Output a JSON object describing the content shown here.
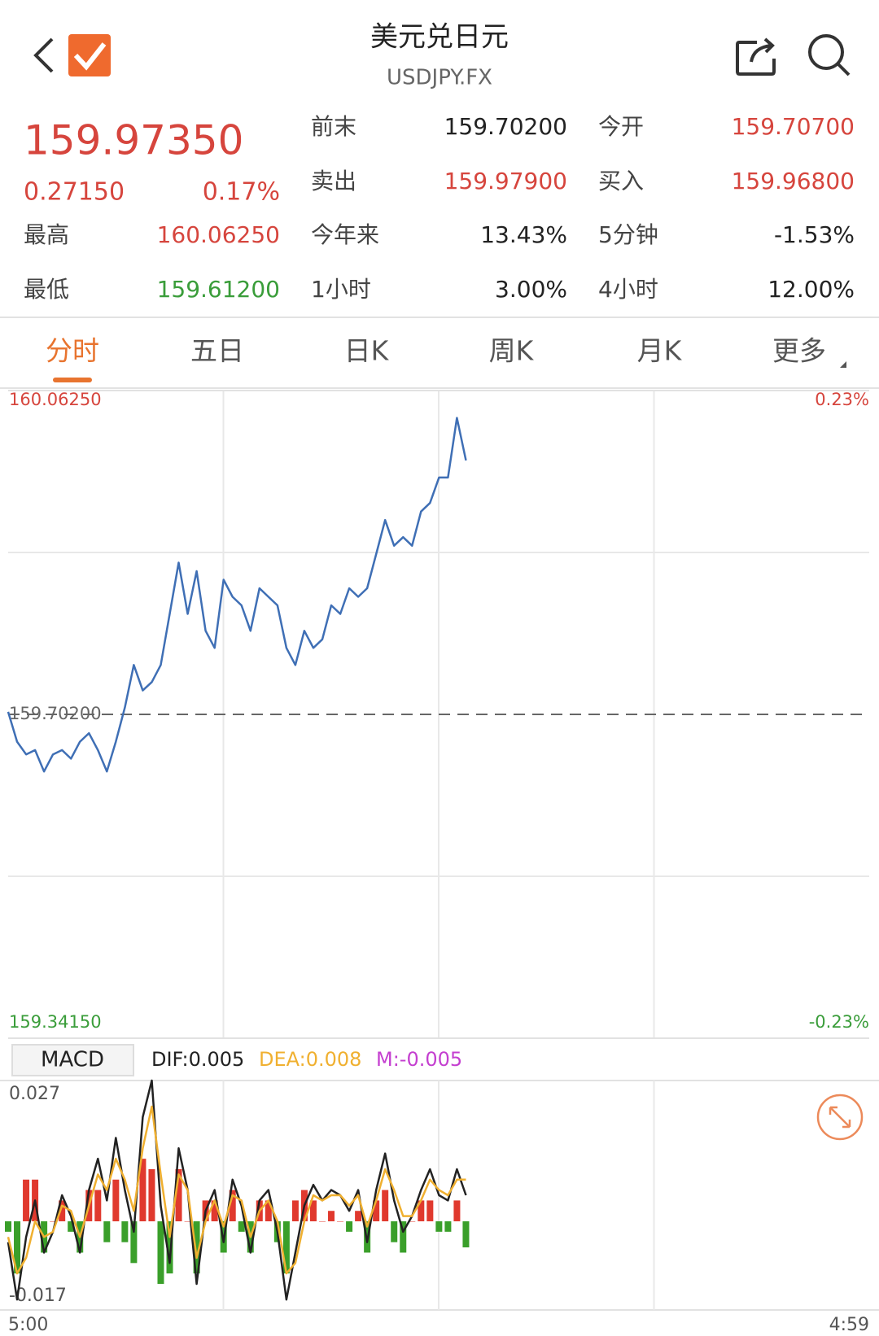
{
  "header": {
    "title": "美元兑日元",
    "code": "USDJPY.FX"
  },
  "quote": {
    "price": "159.97350",
    "change": "0.27150",
    "change_pct": "0.17%",
    "high_label": "最高",
    "high": "160.06250",
    "low_label": "最低",
    "low": "159.61200"
  },
  "stats": [
    [
      {
        "label": "前末",
        "value": "159.70200"
      },
      {
        "label": "今开",
        "value": "159.70700"
      }
    ],
    [
      {
        "label": "卖出",
        "value": "159.97900"
      },
      {
        "label": "买入",
        "value": "159.96800"
      }
    ],
    [
      {
        "label": "今年来",
        "value": "13.43%"
      },
      {
        "label": "5分钟",
        "value": "-1.53%"
      }
    ],
    [
      {
        "label": "1小时",
        "value": "3.00%"
      },
      {
        "label": "4小时",
        "value": "12.00%"
      }
    ]
  ],
  "tabs": [
    "分时",
    "五日",
    "日K",
    "周K",
    "月K",
    "更多"
  ],
  "chart_data": [
    {
      "type": "line",
      "color": "#3f6fb5",
      "x": [
        "5:00",
        "5:15",
        "5:30",
        "5:45",
        "6:00",
        "6:15",
        "6:30",
        "6:45",
        "7:00",
        "7:15",
        "7:30",
        "7:45",
        "8:00",
        "8:15",
        "8:30",
        "8:45",
        "9:00",
        "9:15",
        "9:30",
        "9:45",
        "10:00",
        "10:15",
        "10:30",
        "10:45",
        "11:00",
        "11:15",
        "11:30",
        "11:45",
        "12:00",
        "12:15",
        "12:30",
        "12:45",
        "13:00",
        "13:15",
        "13:30",
        "13:45",
        "14:00",
        "14:15",
        "14:30",
        "14:45",
        "15:00",
        "15:15",
        "15:30",
        "15:45",
        "16:00",
        "16:15",
        "16:30",
        "16:45",
        "17:00",
        "17:15",
        "17:30",
        "17:45"
      ],
      "values": [
        159.7048,
        159.6716,
        159.6574,
        159.6622,
        159.6384,
        159.6574,
        159.6622,
        159.6527,
        159.6716,
        159.6811,
        159.6622,
        159.6384,
        159.6716,
        159.7096,
        159.757,
        159.7286,
        159.738,
        159.757,
        159.8139,
        159.8709,
        159.8139,
        159.8614,
        159.795,
        159.776,
        159.8519,
        159.8329,
        159.8234,
        159.795,
        159.8424,
        159.8329,
        159.8234,
        159.776,
        159.757,
        159.795,
        159.776,
        159.7855,
        159.8234,
        159.8139,
        159.8424,
        159.8329,
        159.8424,
        159.8804,
        159.9183,
        159.8898,
        159.8993,
        159.8898,
        159.9278,
        159.9373,
        159.9657,
        159.9657,
        160.0321,
        159.9847
      ],
      "xlim": [
        "5:00",
        "4:59"
      ],
      "ylim": [
        159.3415,
        160.0625
      ],
      "yticks": [
        {
          "value": 160.0625,
          "label": "160.06250"
        },
        {
          "value": 159.702,
          "label": "159.70200"
        },
        {
          "value": 159.3415,
          "label": "159.34150"
        }
      ],
      "y2lim": [
        -0.23,
        0.23
      ],
      "y2ticks": [
        {
          "value": 0.23,
          "label": "0.23%"
        },
        {
          "value": -0.23,
          "label": "-0.23%"
        }
      ],
      "up_color": "#d6453d",
      "down_color": "#3a9d3a",
      "grid": true
    },
    {
      "type": "macd",
      "title": "MACD",
      "ylim": [
        -0.017,
        0.027
      ],
      "yticks": [
        0.027,
        -0.017
      ],
      "up_color": "#e0392e",
      "down_color": "#3a9f2a",
      "series": [
        {
          "name": "DIF:0.005",
          "color": "#222222",
          "style": "line",
          "values": [
            -0.004,
            -0.015,
            -0.003,
            0.004,
            -0.006,
            -0.002,
            0.005,
            0.001,
            -0.006,
            0.006,
            0.012,
            0.004,
            0.016,
            0.006,
            -0.002,
            0.02,
            0.027,
            0.003,
            -0.008,
            0.014,
            0.006,
            -0.012,
            0.002,
            0.006,
            -0.004,
            0.008,
            0.003,
            -0.006,
            0.004,
            0.006,
            -0.002,
            -0.015,
            -0.006,
            0.003,
            0.007,
            0.004,
            0.006,
            0.005,
            0.002,
            0.006,
            -0.004,
            0.006,
            0.013,
            0.004,
            -0.002,
            0.001,
            0.006,
            0.01,
            0.005,
            0.004,
            0.01,
            0.005
          ]
        },
        {
          "name": "DEA:0.008",
          "color": "#f0b030",
          "style": "line",
          "values": [
            -0.003,
            -0.01,
            -0.007,
            0,
            -0.003,
            -0.002,
            0.003,
            0.002,
            -0.003,
            0.003,
            0.009,
            0.006,
            0.012,
            0.008,
            0.002,
            0.014,
            0.022,
            0.009,
            -0.003,
            0.009,
            0.006,
            -0.007,
            0,
            0.004,
            -0.001,
            0.005,
            0.004,
            -0.003,
            0.002,
            0.004,
            0,
            -0.01,
            -0.008,
            0,
            0.005,
            0.004,
            0.005,
            0.005,
            0.003,
            0.005,
            -0.001,
            0.004,
            0.01,
            0.006,
            0.001,
            0.001,
            0.004,
            0.008,
            0.006,
            0.005,
            0.008,
            0.008
          ]
        },
        {
          "name": "M:-0.005",
          "color": "#c43fd0",
          "style": "histogram",
          "values": [
            -0.002,
            -0.01,
            0.008,
            0.008,
            -0.006,
            0,
            0.004,
            -0.002,
            -0.006,
            0.006,
            0.006,
            -0.004,
            0.008,
            -0.004,
            -0.008,
            0.012,
            0.01,
            -0.012,
            -0.01,
            0.01,
            0,
            -0.01,
            0.004,
            0.004,
            -0.006,
            0.006,
            -0.002,
            -0.006,
            0.004,
            0.004,
            -0.004,
            -0.01,
            0.004,
            0.006,
            0.004,
            0,
            0.002,
            0,
            -0.002,
            0.002,
            -0.006,
            0.004,
            0.006,
            -0.004,
            -0.006,
            0,
            0.004,
            0.004,
            -0.002,
            -0.002,
            0.004,
            -0.005
          ]
        }
      ]
    }
  ]
}
